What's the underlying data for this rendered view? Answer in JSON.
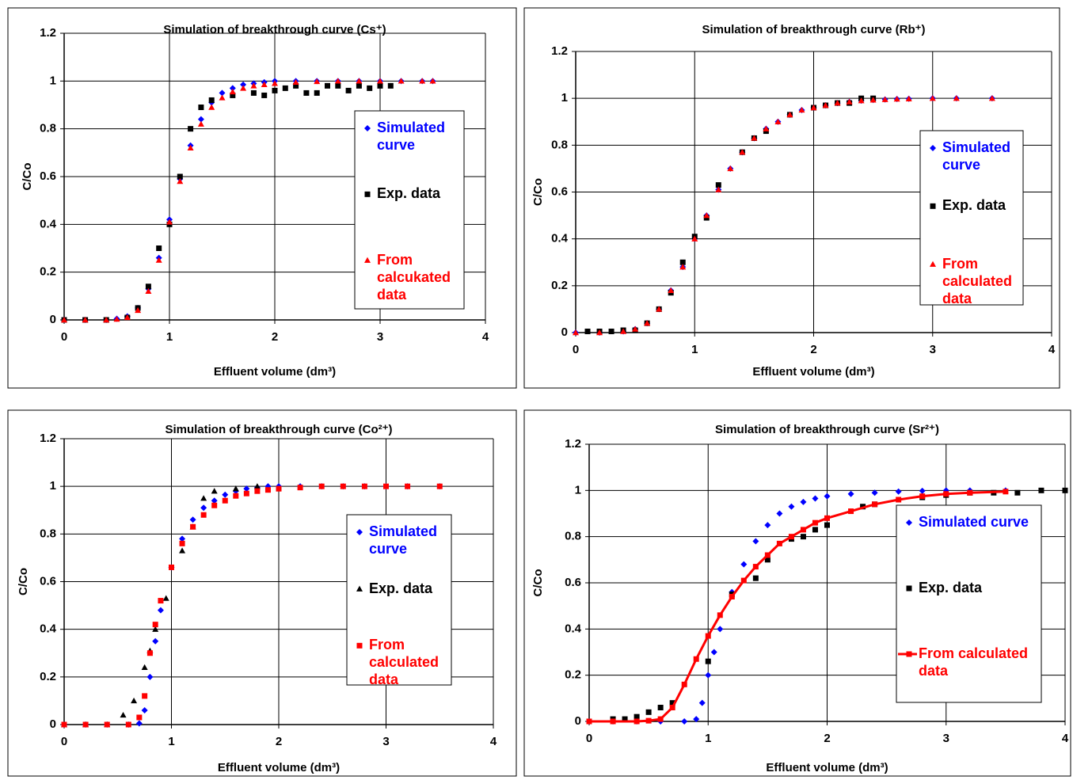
{
  "chart_data": [
    {
      "type": "scatter",
      "title": "Simulation of breakthrough curve (Cs⁺)",
      "x_label": "Effluent volume (dm³)",
      "y_label": "C/Co",
      "xlim": [
        0,
        4
      ],
      "xticks": [
        0,
        1,
        2,
        3,
        4
      ],
      "ylim": [
        0,
        1.2
      ],
      "yticks": [
        0,
        0.2,
        0.4,
        0.6,
        0.8,
        1,
        1.2
      ],
      "grid": true,
      "series": [
        {
          "name": "Simulated curve",
          "color": "#0000ff",
          "marker": "diamond",
          "x": [
            0,
            0.2,
            0.4,
            0.5,
            0.6,
            0.7,
            0.8,
            0.9,
            1.0,
            1.1,
            1.2,
            1.3,
            1.4,
            1.5,
            1.6,
            1.7,
            1.8,
            1.9,
            2.0,
            2.2,
            2.4,
            2.6,
            2.8,
            3.0,
            3.2,
            3.4,
            3.5
          ],
          "values": [
            0,
            0,
            0,
            0.005,
            0.015,
            0.05,
            0.13,
            0.26,
            0.42,
            0.59,
            0.73,
            0.84,
            0.91,
            0.95,
            0.97,
            0.985,
            0.99,
            0.995,
            1,
            1,
            1,
            1,
            1,
            1,
            1,
            1,
            1
          ]
        },
        {
          "name": "Exp. data",
          "color": "#000000",
          "marker": "square",
          "x": [
            0,
            0.2,
            0.4,
            0.6,
            0.7,
            0.8,
            0.9,
            1.0,
            1.1,
            1.2,
            1.3,
            1.4,
            1.6,
            1.8,
            1.9,
            2.0,
            2.1,
            2.2,
            2.3,
            2.4,
            2.5,
            2.6,
            2.7,
            2.8,
            2.9,
            3.0,
            3.1
          ],
          "values": [
            0,
            0,
            0,
            0.01,
            0.05,
            0.14,
            0.3,
            0.4,
            0.6,
            0.8,
            0.89,
            0.92,
            0.94,
            0.95,
            0.94,
            0.96,
            0.97,
            0.98,
            0.95,
            0.95,
            0.98,
            0.98,
            0.96,
            0.98,
            0.97,
            0.98,
            0.98
          ]
        },
        {
          "name": "From calcukated data",
          "color": "#ff0000",
          "marker": "triangle",
          "x": [
            0,
            0.2,
            0.4,
            0.5,
            0.6,
            0.7,
            0.8,
            0.9,
            1.0,
            1.1,
            1.2,
            1.3,
            1.4,
            1.5,
            1.6,
            1.7,
            1.8,
            1.9,
            2.0,
            2.2,
            2.4,
            2.6,
            2.8,
            3.0,
            3.2,
            3.4,
            3.5
          ],
          "values": [
            0,
            0,
            0,
            0.003,
            0.01,
            0.04,
            0.12,
            0.25,
            0.41,
            0.58,
            0.72,
            0.82,
            0.89,
            0.93,
            0.955,
            0.97,
            0.98,
            0.985,
            0.99,
            0.995,
            0.998,
            1,
            1,
            1,
            1,
            1,
            1
          ]
        }
      ]
    },
    {
      "type": "scatter",
      "title": "Simulation of breakthrough curve (Rb⁺)",
      "x_label": "Effluent volume (dm³)",
      "y_label": "C/Co",
      "xlim": [
        0,
        4
      ],
      "xticks": [
        0,
        1,
        2,
        3,
        4
      ],
      "ylim": [
        0,
        1.2
      ],
      "yticks": [
        0,
        0.2,
        0.4,
        0.6,
        0.8,
        1,
        1.2
      ],
      "grid": true,
      "series": [
        {
          "name": "Simulated curve",
          "color": "#0000ff",
          "marker": "diamond",
          "x": [
            0,
            0.2,
            0.4,
            0.5,
            0.6,
            0.7,
            0.8,
            0.9,
            1.0,
            1.1,
            1.2,
            1.3,
            1.4,
            1.5,
            1.6,
            1.7,
            1.8,
            1.9,
            2.0,
            2.1,
            2.2,
            2.3,
            2.4,
            2.5,
            2.6,
            2.7,
            2.8,
            3.0,
            3.2,
            3.5
          ],
          "values": [
            0,
            0,
            0.005,
            0.015,
            0.04,
            0.1,
            0.18,
            0.28,
            0.4,
            0.5,
            0.61,
            0.7,
            0.77,
            0.83,
            0.87,
            0.9,
            0.93,
            0.95,
            0.96,
            0.97,
            0.98,
            0.985,
            0.99,
            0.993,
            0.995,
            0.997,
            0.998,
            1,
            1,
            1
          ]
        },
        {
          "name": "Exp. data",
          "color": "#000000",
          "marker": "square",
          "x": [
            0.1,
            0.2,
            0.3,
            0.4,
            0.5,
            0.6,
            0.7,
            0.8,
            0.9,
            1.0,
            1.1,
            1.2,
            1.4,
            1.5,
            1.6,
            1.8,
            2.0,
            2.1,
            2.2,
            2.3,
            2.4,
            2.5
          ],
          "values": [
            0.005,
            0.005,
            0.005,
            0.01,
            0.01,
            0.04,
            0.1,
            0.17,
            0.3,
            0.41,
            0.49,
            0.63,
            0.77,
            0.83,
            0.86,
            0.93,
            0.96,
            0.97,
            0.98,
            0.98,
            1,
            1
          ]
        },
        {
          "name": "From calculated data",
          "color": "#ff0000",
          "marker": "triangle",
          "x": [
            0,
            0.2,
            0.4,
            0.5,
            0.6,
            0.7,
            0.8,
            0.9,
            1.0,
            1.1,
            1.2,
            1.3,
            1.4,
            1.5,
            1.6,
            1.7,
            1.8,
            1.9,
            2.0,
            2.1,
            2.2,
            2.3,
            2.4,
            2.5,
            2.6,
            2.7,
            2.8,
            3.0,
            3.2,
            3.5
          ],
          "values": [
            0,
            0,
            0.005,
            0.015,
            0.04,
            0.1,
            0.18,
            0.28,
            0.4,
            0.5,
            0.61,
            0.7,
            0.77,
            0.83,
            0.87,
            0.9,
            0.93,
            0.95,
            0.96,
            0.97,
            0.98,
            0.985,
            0.99,
            0.993,
            0.995,
            0.997,
            0.998,
            1,
            1,
            1
          ]
        }
      ]
    },
    {
      "type": "scatter",
      "title": "Simulation of breakthrough curve (Co²⁺)",
      "x_label": "Effluent volume (dm³)",
      "y_label": "C/Co",
      "xlim": [
        0,
        4
      ],
      "xticks": [
        0,
        1,
        2,
        3,
        4
      ],
      "ylim": [
        0,
        1.2
      ],
      "yticks": [
        0,
        0.2,
        0.4,
        0.6,
        0.8,
        1,
        1.2
      ],
      "grid": true,
      "series": [
        {
          "name": "Simulated curve",
          "color": "#0000ff",
          "marker": "diamond",
          "x": [
            0,
            0.2,
            0.4,
            0.6,
            0.7,
            0.75,
            0.8,
            0.85,
            0.9,
            1.0,
            1.1,
            1.2,
            1.3,
            1.4,
            1.5,
            1.6,
            1.7,
            1.8,
            1.9,
            2.0,
            2.2,
            2.4,
            2.6,
            2.8,
            3.0,
            3.2,
            3.5
          ],
          "values": [
            0,
            0,
            0,
            0,
            0.005,
            0.06,
            0.2,
            0.35,
            0.48,
            0.66,
            0.78,
            0.86,
            0.91,
            0.94,
            0.965,
            0.98,
            0.99,
            0.995,
            1,
            1,
            1,
            1,
            1,
            1,
            1,
            1,
            1
          ]
        },
        {
          "name": "Exp. data",
          "color": "#000000",
          "marker": "triangle",
          "x": [
            0,
            0.2,
            0.4,
            0.55,
            0.65,
            0.75,
            0.8,
            0.85,
            0.95,
            1.1,
            1.2,
            1.3,
            1.4,
            1.6,
            1.8
          ],
          "values": [
            0,
            0,
            0,
            0.04,
            0.1,
            0.24,
            0.31,
            0.4,
            0.53,
            0.73,
            0.83,
            0.95,
            0.98,
            0.99,
            1
          ]
        },
        {
          "name": "From calculated data",
          "color": "#ff0000",
          "marker": "square",
          "x": [
            0,
            0.2,
            0.4,
            0.6,
            0.7,
            0.75,
            0.8,
            0.85,
            0.9,
            1.0,
            1.1,
            1.2,
            1.3,
            1.4,
            1.5,
            1.6,
            1.7,
            1.8,
            1.9,
            2.0,
            2.2,
            2.4,
            2.6,
            2.8,
            3.0,
            3.2,
            3.5
          ],
          "values": [
            0,
            0,
            0,
            0,
            0.03,
            0.12,
            0.3,
            0.42,
            0.52,
            0.66,
            0.76,
            0.83,
            0.88,
            0.92,
            0.94,
            0.96,
            0.97,
            0.98,
            0.985,
            0.99,
            0.995,
            1,
            1,
            1,
            1,
            1,
            1
          ]
        }
      ]
    },
    {
      "type": "scatter",
      "title": "Simulation of breakthrough curve (Sr²⁺)",
      "x_label": "Effluent volume (dm³)",
      "y_label": "C/Co",
      "xlim": [
        0,
        4
      ],
      "xticks": [
        0,
        1,
        2,
        3,
        4
      ],
      "ylim": [
        0,
        1.2
      ],
      "yticks": [
        0,
        0.2,
        0.4,
        0.6,
        0.8,
        1,
        1.2
      ],
      "grid": true,
      "series": [
        {
          "name": "Simulated curve",
          "color": "#0000ff",
          "marker": "diamond",
          "x": [
            0,
            0.2,
            0.4,
            0.6,
            0.8,
            0.9,
            0.95,
            1.0,
            1.05,
            1.1,
            1.2,
            1.3,
            1.4,
            1.5,
            1.6,
            1.7,
            1.8,
            1.9,
            2.0,
            2.2,
            2.4,
            2.6,
            2.8,
            3.0,
            3.2,
            3.5
          ],
          "values": [
            0,
            0,
            0,
            0,
            0,
            0.01,
            0.08,
            0.2,
            0.3,
            0.4,
            0.56,
            0.68,
            0.78,
            0.85,
            0.9,
            0.93,
            0.95,
            0.965,
            0.975,
            0.985,
            0.99,
            0.995,
            0.998,
            1,
            1,
            1
          ]
        },
        {
          "name": "Exp. data",
          "color": "#000000",
          "marker": "square",
          "x": [
            0,
            0.2,
            0.3,
            0.4,
            0.5,
            0.6,
            0.7,
            1.0,
            1.2,
            1.4,
            1.5,
            1.7,
            1.8,
            1.9,
            2.0,
            2.3,
            2.4,
            2.8,
            3.0,
            3.2,
            3.4,
            3.6,
            3.8,
            4.0
          ],
          "values": [
            0,
            0.01,
            0.01,
            0.02,
            0.04,
            0.06,
            0.08,
            0.26,
            0.55,
            0.62,
            0.7,
            0.79,
            0.8,
            0.83,
            0.85,
            0.93,
            0.94,
            0.97,
            0.98,
            0.99,
            0.99,
            0.99,
            1,
            1
          ]
        },
        {
          "name": "From calculated data",
          "color": "#ff0000",
          "marker": "square-line",
          "x": [
            0,
            0.2,
            0.4,
            0.5,
            0.6,
            0.7,
            0.8,
            0.9,
            1.0,
            1.1,
            1.2,
            1.3,
            1.4,
            1.5,
            1.6,
            1.7,
            1.8,
            1.9,
            2.0,
            2.2,
            2.4,
            2.6,
            2.8,
            3.0,
            3.2,
            3.5
          ],
          "values": [
            0,
            0,
            0,
            0.003,
            0.01,
            0.06,
            0.16,
            0.27,
            0.37,
            0.46,
            0.54,
            0.61,
            0.67,
            0.72,
            0.77,
            0.8,
            0.83,
            0.86,
            0.88,
            0.91,
            0.94,
            0.96,
            0.975,
            0.985,
            0.99,
            0.995
          ]
        }
      ]
    }
  ]
}
